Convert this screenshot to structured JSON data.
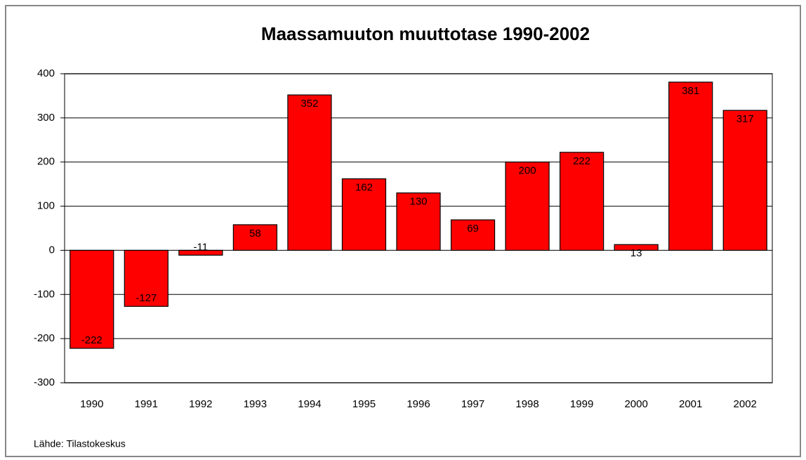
{
  "chart_data": {
    "type": "bar",
    "title": "Maassamuuton muuttotase 1990-2002",
    "categories": [
      "1990",
      "1991",
      "1992",
      "1993",
      "1994",
      "1995",
      "1996",
      "1997",
      "1998",
      "1999",
      "2000",
      "2001",
      "2002"
    ],
    "values": [
      -222,
      -127,
      -11,
      58,
      352,
      162,
      130,
      69,
      200,
      222,
      13,
      381,
      317
    ],
    "color": "#ff0000",
    "ylim": [
      -300,
      400
    ],
    "yticks": [
      -300,
      -200,
      -100,
      0,
      100,
      200,
      300,
      400
    ],
    "grid": true,
    "source": "Lähde: Tilastokeskus"
  }
}
